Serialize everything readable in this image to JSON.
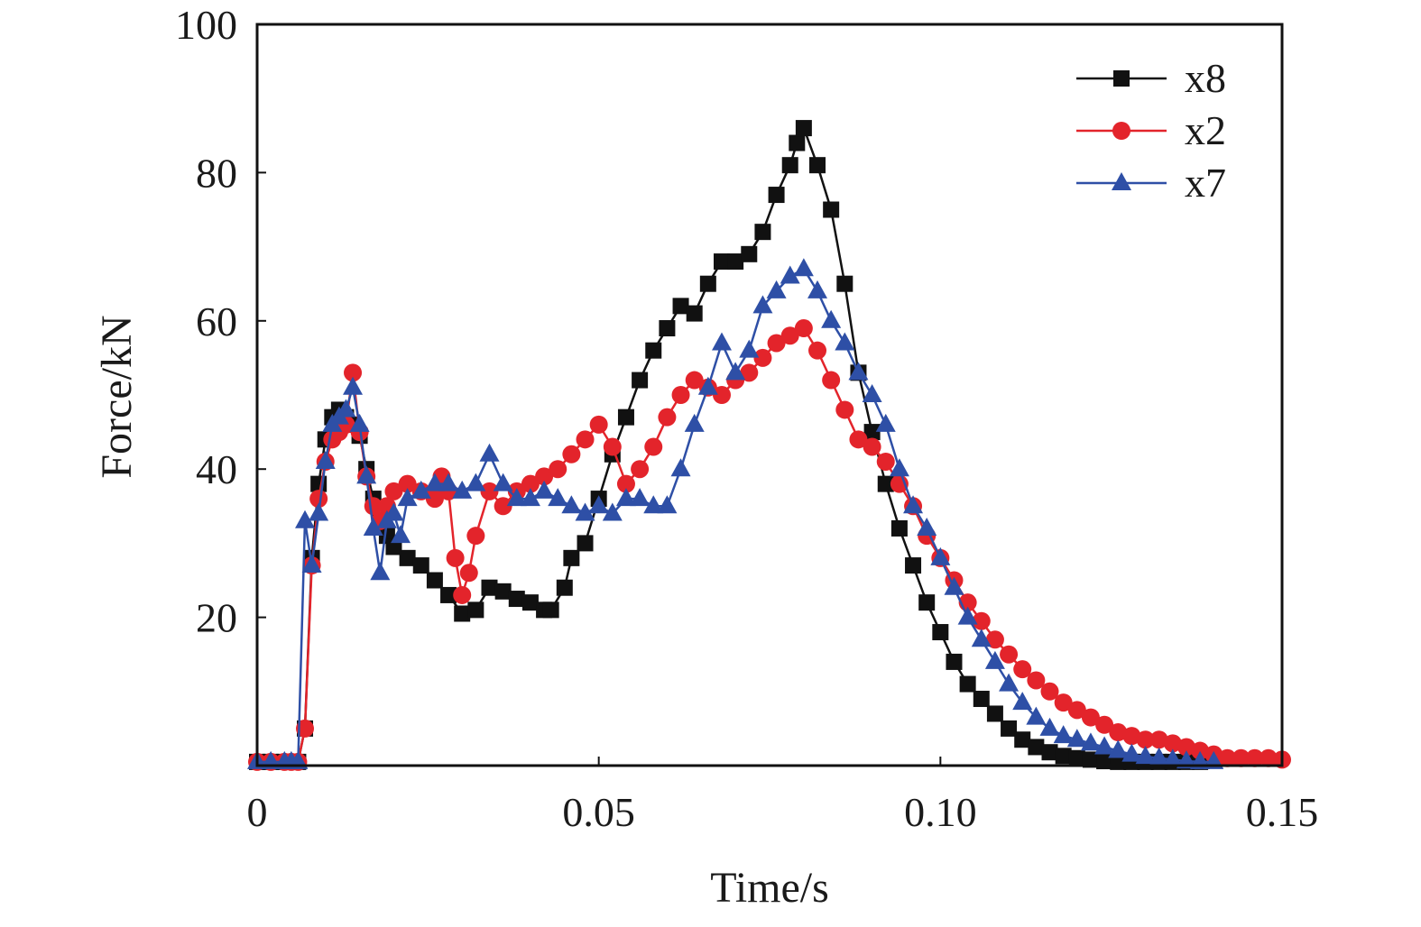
{
  "chart_data": {
    "type": "line",
    "title": "",
    "xlabel": "Time/s",
    "ylabel": "Force/kN",
    "xlim": [
      0,
      0.15
    ],
    "ylim": [
      0,
      100
    ],
    "xticks": [
      {
        "value": 0,
        "label": "0"
      },
      {
        "value": 0.05,
        "label": "0.05"
      },
      {
        "value": 0.1,
        "label": "0.10"
      },
      {
        "value": 0.15,
        "label": "0.15"
      }
    ],
    "yticks": [
      {
        "value": 20,
        "label": "20"
      },
      {
        "value": 40,
        "label": "40"
      },
      {
        "value": 60,
        "label": "60"
      },
      {
        "value": 80,
        "label": "80"
      },
      {
        "value": 100,
        "label": "100"
      }
    ],
    "grid": false,
    "legend_position": "top-right",
    "series": [
      {
        "name": "x8",
        "color": "#111111",
        "marker": "square",
        "x": [
          0.0,
          0.002,
          0.004,
          0.005,
          0.006,
          0.007,
          0.008,
          0.009,
          0.01,
          0.011,
          0.012,
          0.013,
          0.014,
          0.015,
          0.016,
          0.017,
          0.018,
          0.019,
          0.02,
          0.022,
          0.024,
          0.026,
          0.028,
          0.03,
          0.032,
          0.034,
          0.036,
          0.038,
          0.04,
          0.042,
          0.043,
          0.045,
          0.046,
          0.048,
          0.05,
          0.052,
          0.054,
          0.056,
          0.058,
          0.06,
          0.062,
          0.064,
          0.066,
          0.068,
          0.07,
          0.072,
          0.074,
          0.076,
          0.078,
          0.079,
          0.08,
          0.082,
          0.084,
          0.086,
          0.088,
          0.09,
          0.092,
          0.094,
          0.096,
          0.098,
          0.1,
          0.102,
          0.104,
          0.106,
          0.108,
          0.11,
          0.112,
          0.114,
          0.116,
          0.118,
          0.12,
          0.122,
          0.124,
          0.126,
          0.128,
          0.13,
          0.132,
          0.134,
          0.136,
          0.138
        ],
        "y": [
          0.5,
          0.5,
          0.5,
          0.5,
          0.5,
          5,
          28,
          38,
          44,
          47,
          48,
          47,
          46,
          44.5,
          40,
          36,
          33,
          31,
          29.5,
          28,
          27,
          25,
          23,
          20.5,
          21,
          24,
          23.5,
          22.5,
          22,
          21,
          21,
          24,
          28,
          30,
          36,
          42,
          47,
          52,
          56,
          59,
          62,
          61,
          65,
          68,
          68,
          69,
          72,
          77,
          81,
          84,
          86,
          81,
          75,
          65,
          53,
          45,
          38,
          32,
          27,
          22,
          18,
          14,
          11,
          9,
          7,
          5,
          3.5,
          2.5,
          1.8,
          1.3,
          1,
          0.8,
          0.6,
          0.5,
          0.5,
          0.5,
          0.5,
          0.5,
          0.5,
          0.5
        ]
      },
      {
        "name": "x2",
        "color": "#e3242b",
        "marker": "circle",
        "x": [
          0.0,
          0.002,
          0.004,
          0.005,
          0.006,
          0.007,
          0.008,
          0.009,
          0.01,
          0.011,
          0.012,
          0.013,
          0.014,
          0.015,
          0.016,
          0.017,
          0.018,
          0.019,
          0.02,
          0.022,
          0.024,
          0.026,
          0.027,
          0.028,
          0.029,
          0.03,
          0.031,
          0.032,
          0.034,
          0.036,
          0.038,
          0.04,
          0.042,
          0.044,
          0.046,
          0.048,
          0.05,
          0.052,
          0.054,
          0.056,
          0.058,
          0.06,
          0.062,
          0.064,
          0.066,
          0.068,
          0.07,
          0.072,
          0.074,
          0.076,
          0.078,
          0.08,
          0.082,
          0.084,
          0.086,
          0.088,
          0.09,
          0.092,
          0.094,
          0.096,
          0.098,
          0.1,
          0.102,
          0.104,
          0.106,
          0.108,
          0.11,
          0.112,
          0.114,
          0.116,
          0.118,
          0.12,
          0.122,
          0.124,
          0.126,
          0.128,
          0.13,
          0.132,
          0.134,
          0.136,
          0.138,
          0.14,
          0.142,
          0.144,
          0.146,
          0.148,
          0.15
        ],
        "y": [
          0.5,
          0.5,
          0.5,
          0.5,
          0.5,
          5,
          27,
          36,
          41,
          44,
          45,
          46,
          53,
          45,
          39,
          35,
          33,
          35,
          37,
          38,
          37,
          36,
          39,
          37,
          28,
          23,
          26,
          31,
          37,
          35,
          37,
          38,
          39,
          40,
          42,
          44,
          46,
          43,
          38,
          40,
          43,
          47,
          50,
          52,
          51,
          50,
          52,
          53,
          55,
          57,
          58,
          59,
          56,
          52,
          48,
          44,
          43,
          41,
          38,
          35,
          31,
          28,
          25,
          22,
          19.5,
          17,
          15,
          13,
          11.5,
          10,
          8.5,
          7.5,
          6.5,
          5.5,
          4.5,
          4,
          3.5,
          3.5,
          3,
          2.5,
          2,
          1.5,
          1,
          1,
          1,
          1,
          0.8
        ]
      },
      {
        "name": "x7",
        "color": "#2e4fa6",
        "marker": "triangle",
        "x": [
          0.0,
          0.002,
          0.004,
          0.005,
          0.006,
          0.007,
          0.008,
          0.009,
          0.01,
          0.011,
          0.012,
          0.013,
          0.014,
          0.015,
          0.016,
          0.017,
          0.018,
          0.019,
          0.02,
          0.021,
          0.022,
          0.024,
          0.026,
          0.028,
          0.03,
          0.032,
          0.034,
          0.036,
          0.038,
          0.04,
          0.042,
          0.044,
          0.046,
          0.048,
          0.05,
          0.052,
          0.054,
          0.056,
          0.058,
          0.06,
          0.062,
          0.064,
          0.066,
          0.068,
          0.07,
          0.072,
          0.074,
          0.076,
          0.078,
          0.08,
          0.082,
          0.084,
          0.086,
          0.088,
          0.09,
          0.092,
          0.094,
          0.096,
          0.098,
          0.1,
          0.102,
          0.104,
          0.106,
          0.108,
          0.11,
          0.112,
          0.114,
          0.116,
          0.118,
          0.12,
          0.122,
          0.124,
          0.126,
          0.128,
          0.13,
          0.132,
          0.134,
          0.136,
          0.138,
          0.14
        ],
        "y": [
          0.5,
          0.5,
          0.5,
          0.5,
          0.5,
          33,
          27,
          34,
          41,
          46,
          47,
          48,
          51,
          46,
          39,
          32,
          26,
          33,
          34,
          31,
          36,
          37,
          38,
          38,
          37,
          38,
          42,
          38,
          36,
          36,
          37,
          36,
          35,
          34,
          35,
          34,
          36,
          36,
          35,
          35,
          40,
          46,
          51,
          57,
          53,
          56,
          62,
          64,
          66,
          67,
          64,
          60,
          57,
          53,
          50,
          46,
          40,
          35,
          32,
          28,
          24,
          20,
          17,
          14,
          11,
          8.5,
          6.5,
          5,
          4,
          3.5,
          3,
          2.5,
          2,
          1.5,
          1.2,
          1,
          0.8,
          0.6,
          0.5,
          0.5
        ]
      }
    ]
  }
}
